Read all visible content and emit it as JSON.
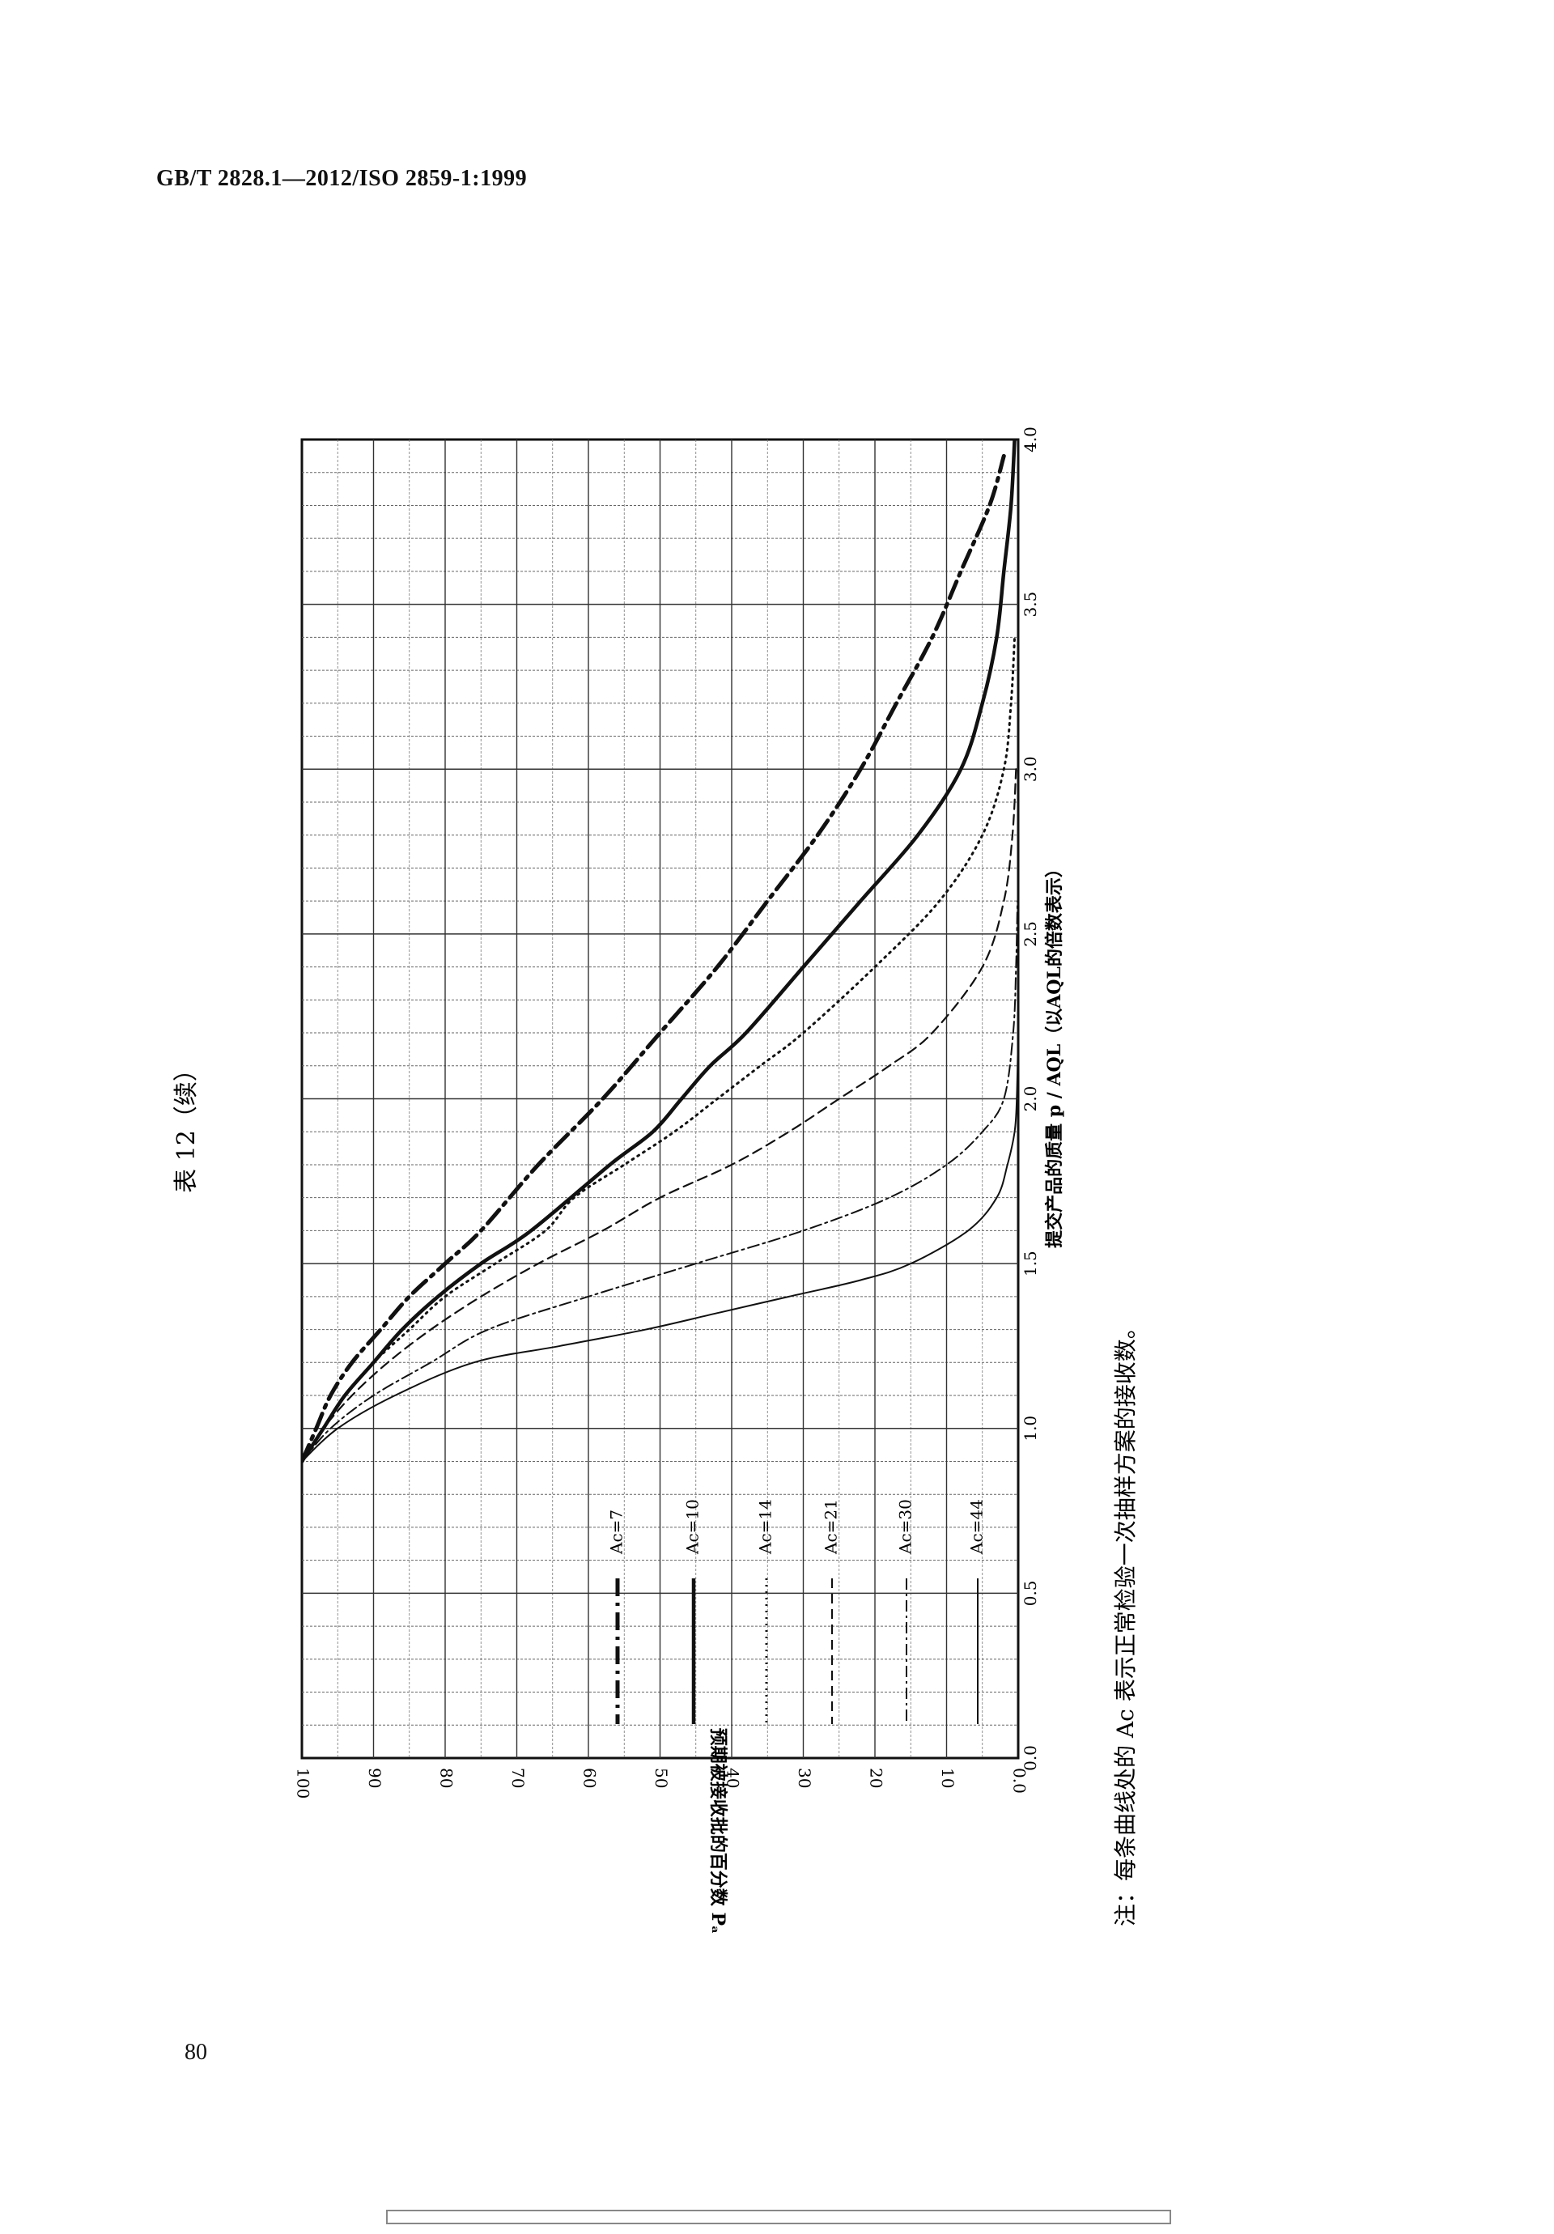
{
  "header": {
    "text": "GB/T 2828.1—2012/ISO 2859-1:1999"
  },
  "page_number": "80",
  "table_title": "表 12（续）",
  "note": "注：每条曲线处的 Ac 表示正常检验一次抽样方案的接收数。",
  "chart_data": {
    "type": "line",
    "title": "",
    "xlabel": "提交产品的质量 p / AQL（以AQL的倍数表示）",
    "ylabel": "预期被接收批的百分数 Pₐ",
    "xlim": [
      0,
      4.0
    ],
    "ylim": [
      0,
      100
    ],
    "x_ticks": [
      "0.0",
      "0.5",
      "1.0",
      "1.5",
      "2.0",
      "2.5",
      "3.0",
      "3.5",
      "4.0"
    ],
    "y_ticks": [
      "0.0",
      "10",
      "20",
      "30",
      "40",
      "50",
      "60",
      "70",
      "80",
      "90",
      "100"
    ],
    "grid": true,
    "legend_position": "bottom-left",
    "series": [
      {
        "name": "Ac=7",
        "style": "dashdot-bold",
        "x": [
          0.9,
          1.0,
          1.1,
          1.2,
          1.3,
          1.4,
          1.5,
          1.6,
          1.8,
          2.0,
          2.2,
          2.4,
          2.6,
          2.8,
          3.0,
          3.2,
          3.4,
          3.6,
          3.8,
          3.95
        ],
        "y": [
          100,
          98,
          96,
          93,
          89,
          85,
          80,
          75,
          67,
          58,
          50,
          42,
          35,
          28,
          22,
          17,
          12,
          8,
          4,
          2
        ]
      },
      {
        "name": "Ac=10",
        "style": "solid-bold",
        "x": [
          0.9,
          1.0,
          1.1,
          1.2,
          1.3,
          1.4,
          1.5,
          1.6,
          1.8,
          1.9,
          2.0,
          2.1,
          2.2,
          2.4,
          2.6,
          2.8,
          3.0,
          3.2,
          3.4,
          3.6,
          3.8,
          4.0
        ],
        "y": [
          100,
          97,
          94,
          90,
          86,
          81,
          75,
          68,
          57,
          51,
          47,
          43,
          38,
          30,
          22,
          14,
          8,
          5,
          3,
          2,
          1,
          0.5
        ]
      },
      {
        "name": "Ac=14",
        "style": "dotted",
        "x": [
          0.9,
          1.0,
          1.1,
          1.2,
          1.3,
          1.4,
          1.5,
          1.6,
          1.7,
          1.8,
          1.9,
          2.0,
          2.1,
          2.2,
          2.4,
          2.6,
          2.8,
          3.0,
          3.2,
          3.4
        ],
        "y": [
          100,
          97,
          94,
          90,
          85,
          80,
          73,
          66,
          62,
          55,
          48,
          42,
          36,
          30,
          20,
          11,
          5,
          2,
          1,
          0.5
        ]
      },
      {
        "name": "Ac=21",
        "style": "dashed",
        "x": [
          0.9,
          1.0,
          1.1,
          1.2,
          1.3,
          1.4,
          1.5,
          1.6,
          1.7,
          1.8,
          1.9,
          2.0,
          2.1,
          2.2,
          2.4,
          2.6,
          2.8,
          3.0
        ],
        "y": [
          100,
          97,
          93,
          88,
          82,
          75,
          67,
          58,
          50,
          40,
          32,
          25,
          18,
          12,
          5,
          2,
          0.8,
          0.3
        ]
      },
      {
        "name": "Ac=30",
        "style": "dashdot",
        "x": [
          0.9,
          1.0,
          1.1,
          1.2,
          1.3,
          1.4,
          1.5,
          1.6,
          1.7,
          1.8,
          1.9,
          2.0,
          2.2,
          2.4,
          2.6
        ],
        "y": [
          100,
          96,
          90,
          82,
          74,
          60,
          45,
          30,
          18,
          10,
          5,
          2,
          0.7,
          0.3,
          0.1
        ]
      },
      {
        "name": "Ac=44",
        "style": "solid-thin",
        "x": [
          0.9,
          1.0,
          1.1,
          1.2,
          1.25,
          1.3,
          1.35,
          1.4,
          1.45,
          1.5,
          1.6,
          1.7,
          1.8,
          1.9,
          2.0,
          2.2
        ],
        "y": [
          100,
          95,
          87,
          76,
          64,
          52,
          42,
          32,
          22,
          15,
          7,
          3,
          1.5,
          0.5,
          0.2,
          0
        ]
      }
    ]
  }
}
